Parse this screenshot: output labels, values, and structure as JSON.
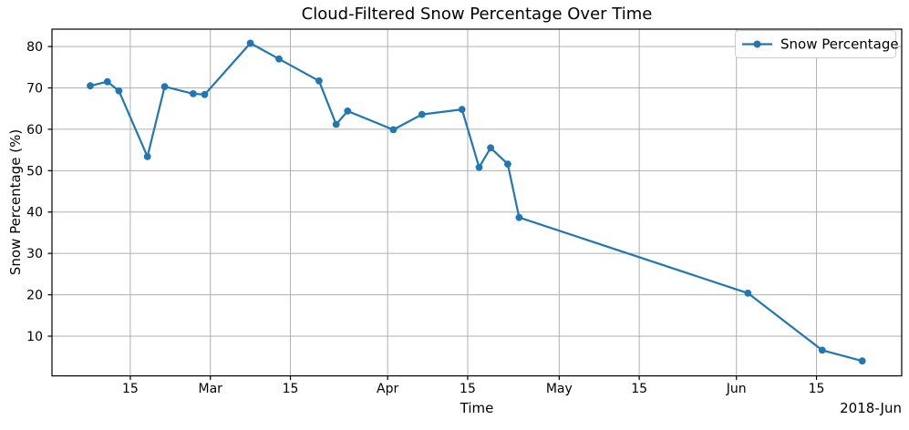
{
  "chart_data": {
    "type": "line",
    "title": "Cloud-Filtered Snow Percentage Over Time",
    "xlabel": "Time",
    "ylabel": "Snow Percentage (%)",
    "x_offset_label": "2018-Jun",
    "legend": {
      "position": "upper right",
      "entries": [
        {
          "label": "Snow Percentage",
          "color": "#1f77b4",
          "marker": "circle"
        }
      ]
    },
    "series": [
      {
        "name": "Snow Percentage",
        "color": "#1f77b4",
        "marker": "o",
        "points": [
          {
            "date": "2018-02-08",
            "value": 70.5
          },
          {
            "date": "2018-02-11",
            "value": 71.5
          },
          {
            "date": "2018-02-13",
            "value": 69.3
          },
          {
            "date": "2018-02-18",
            "value": 53.4
          },
          {
            "date": "2018-02-21",
            "value": 70.3
          },
          {
            "date": "2018-02-26",
            "value": 68.6
          },
          {
            "date": "2018-02-28",
            "value": 68.4
          },
          {
            "date": "2018-03-08",
            "value": 80.8
          },
          {
            "date": "2018-03-13",
            "value": 77.0
          },
          {
            "date": "2018-03-20",
            "value": 71.7
          },
          {
            "date": "2018-03-23",
            "value": 61.2
          },
          {
            "date": "2018-03-25",
            "value": 64.4
          },
          {
            "date": "2018-04-02",
            "value": 59.9
          },
          {
            "date": "2018-04-07",
            "value": 63.6
          },
          {
            "date": "2018-04-14",
            "value": 64.8
          },
          {
            "date": "2018-04-17",
            "value": 50.8
          },
          {
            "date": "2018-04-19",
            "value": 55.5
          },
          {
            "date": "2018-04-22",
            "value": 51.6
          },
          {
            "date": "2018-04-24",
            "value": 38.7
          },
          {
            "date": "2018-06-03",
            "value": 20.4
          },
          {
            "date": "2018-06-16",
            "value": 6.6
          },
          {
            "date": "2018-06-23",
            "value": 4.0
          }
        ]
      }
    ],
    "x_ticks": [
      {
        "date": "2018-02-15",
        "label": "15"
      },
      {
        "date": "2018-03-01",
        "label": "Mar"
      },
      {
        "date": "2018-03-15",
        "label": "15"
      },
      {
        "date": "2018-04-01",
        "label": "Apr"
      },
      {
        "date": "2018-04-15",
        "label": "15"
      },
      {
        "date": "2018-05-01",
        "label": "May"
      },
      {
        "date": "2018-05-15",
        "label": "15"
      },
      {
        "date": "2018-06-01",
        "label": "Jun"
      },
      {
        "date": "2018-06-15",
        "label": "15"
      }
    ],
    "y_ticks": [
      10,
      20,
      30,
      40,
      50,
      60,
      70,
      80
    ],
    "ylim": [
      0.4,
      84.2
    ],
    "xlim_days_of_year": [
      31.3,
      179.9
    ],
    "grid": true,
    "colors": {
      "line": "#1f77b4",
      "grid": "#b0b0b0",
      "axis": "#000000",
      "background": "#ffffff",
      "legend_border": "#cccccc"
    }
  }
}
